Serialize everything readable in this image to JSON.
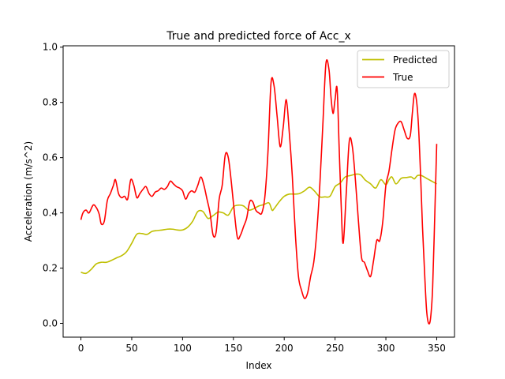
{
  "chart_data": {
    "type": "line",
    "title": "True and predicted force of Acc_x",
    "xlabel": "Index",
    "ylabel": "Acceleration (m/s^2)",
    "xlim": [
      -17.5,
      367.5
    ],
    "ylim": [
      -0.05,
      1.005
    ],
    "xticks": [
      0,
      50,
      100,
      150,
      200,
      250,
      300,
      350
    ],
    "yticks": [
      0.0,
      0.2,
      0.4,
      0.6,
      0.8,
      1.0
    ],
    "xtick_labels": [
      "0",
      "50",
      "100",
      "150",
      "200",
      "250",
      "300",
      "350"
    ],
    "ytick_labels": [
      "0.0",
      "0.2",
      "0.4",
      "0.6",
      "0.8",
      "1.0"
    ],
    "grid": false,
    "legend_position": "upper right",
    "series": [
      {
        "name": "Predicted",
        "color": "#bfbf00",
        "x": [
          0,
          5,
          10,
          15,
          20,
          25,
          30,
          35,
          40,
          45,
          50,
          55,
          60,
          65,
          70,
          75,
          80,
          85,
          90,
          95,
          100,
          105,
          110,
          115,
          120,
          125,
          130,
          135,
          140,
          145,
          150,
          155,
          160,
          165,
          170,
          175,
          180,
          185,
          188,
          190,
          195,
          200,
          205,
          210,
          215,
          220,
          225,
          230,
          235,
          240,
          245,
          250,
          255,
          260,
          265,
          270,
          275,
          280,
          285,
          290,
          295,
          300,
          303,
          306,
          310,
          315,
          320,
          325,
          328,
          331,
          335,
          340,
          345,
          350
        ],
        "y": [
          0.185,
          0.181,
          0.195,
          0.215,
          0.221,
          0.221,
          0.228,
          0.237,
          0.245,
          0.26,
          0.29,
          0.323,
          0.325,
          0.322,
          0.333,
          0.336,
          0.338,
          0.341,
          0.341,
          0.338,
          0.338,
          0.348,
          0.37,
          0.405,
          0.405,
          0.38,
          0.39,
          0.403,
          0.4,
          0.392,
          0.422,
          0.428,
          0.425,
          0.41,
          0.415,
          0.425,
          0.43,
          0.436,
          0.41,
          0.415,
          0.44,
          0.46,
          0.468,
          0.468,
          0.47,
          0.48,
          0.493,
          0.478,
          0.458,
          0.458,
          0.46,
          0.495,
          0.508,
          0.53,
          0.535,
          0.54,
          0.538,
          0.518,
          0.505,
          0.49,
          0.52,
          0.502,
          0.52,
          0.53,
          0.505,
          0.525,
          0.528,
          0.53,
          0.523,
          0.535,
          0.535,
          0.525,
          0.515,
          0.505
        ]
      },
      {
        "name": "True",
        "color": "#ff0000",
        "x": [
          0,
          2,
          5,
          8,
          12,
          15,
          18,
          20,
          23,
          26,
          29,
          32,
          34,
          37,
          40,
          43,
          46,
          49,
          52,
          55,
          58,
          61,
          64,
          67,
          70,
          73,
          76,
          79,
          82,
          85,
          88,
          91,
          94,
          97,
          100,
          103,
          106,
          109,
          112,
          115,
          118,
          121,
          124,
          127,
          130,
          133,
          136,
          139,
          142,
          145,
          148,
          151,
          154,
          157,
          160,
          163,
          166,
          169,
          172,
          175,
          178,
          181,
          184,
          187,
          190,
          193,
          196,
          199,
          202,
          205,
          208,
          211,
          214,
          217,
          220,
          223,
          226,
          229,
          232,
          235,
          238,
          241,
          244,
          246,
          248,
          250,
          252,
          254,
          256,
          258,
          261,
          264,
          267,
          270,
          273,
          276,
          279,
          282,
          285,
          288,
          291,
          294,
          297,
          300,
          303,
          306,
          309,
          312,
          315,
          318,
          321,
          324,
          326,
          328,
          330,
          332,
          334,
          336,
          338,
          340,
          342,
          344,
          346,
          348,
          350
        ],
        "y": [
          0.375,
          0.4,
          0.41,
          0.4,
          0.428,
          0.42,
          0.395,
          0.36,
          0.37,
          0.445,
          0.47,
          0.5,
          0.52,
          0.47,
          0.455,
          0.46,
          0.45,
          0.52,
          0.5,
          0.455,
          0.47,
          0.485,
          0.495,
          0.47,
          0.46,
          0.475,
          0.48,
          0.49,
          0.485,
          0.495,
          0.515,
          0.505,
          0.495,
          0.49,
          0.48,
          0.45,
          0.47,
          0.48,
          0.475,
          0.5,
          0.53,
          0.5,
          0.45,
          0.4,
          0.32,
          0.33,
          0.45,
          0.5,
          0.61,
          0.6,
          0.51,
          0.4,
          0.31,
          0.32,
          0.35,
          0.38,
          0.44,
          0.44,
          0.41,
          0.4,
          0.4,
          0.46,
          0.62,
          0.87,
          0.86,
          0.75,
          0.64,
          0.71,
          0.81,
          0.69,
          0.53,
          0.32,
          0.17,
          0.12,
          0.09,
          0.11,
          0.17,
          0.22,
          0.33,
          0.5,
          0.72,
          0.94,
          0.92,
          0.82,
          0.76,
          0.81,
          0.85,
          0.64,
          0.43,
          0.29,
          0.47,
          0.66,
          0.64,
          0.52,
          0.37,
          0.24,
          0.22,
          0.19,
          0.17,
          0.23,
          0.3,
          0.3,
          0.37,
          0.5,
          0.55,
          0.63,
          0.7,
          0.725,
          0.73,
          0.7,
          0.67,
          0.68,
          0.76,
          0.83,
          0.81,
          0.72,
          0.55,
          0.35,
          0.19,
          0.05,
          0.0,
          0.02,
          0.13,
          0.38,
          0.65
        ]
      }
    ]
  }
}
